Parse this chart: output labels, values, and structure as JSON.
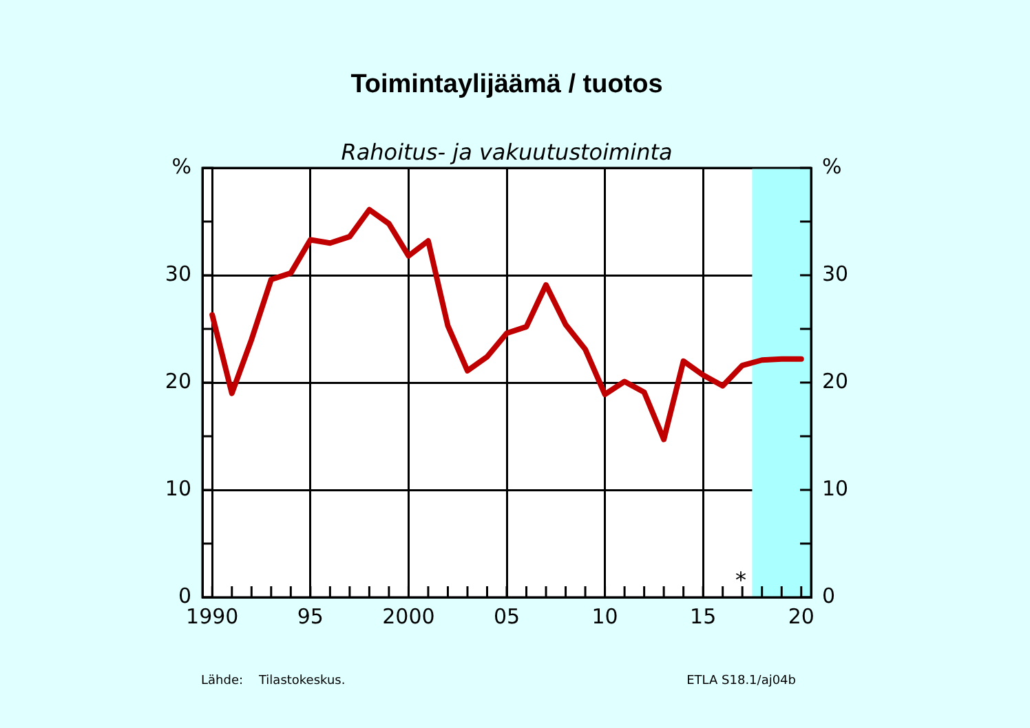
{
  "chart_data": {
    "type": "line",
    "title": "Toimintaylijäämä / tuotos",
    "subtitle": "Rahoitus- ja vakuutustoiminta",
    "x": [
      1990,
      1991,
      1992,
      1993,
      1994,
      1995,
      1996,
      1997,
      1998,
      1999,
      2000,
      2001,
      2002,
      2003,
      2004,
      2005,
      2006,
      2007,
      2008,
      2009,
      2010,
      2011,
      2012,
      2013,
      2014,
      2015,
      2016,
      2017,
      2018,
      2019,
      2020
    ],
    "series": [
      {
        "color": "#c00000",
        "values": [
          26.3,
          19.0,
          24.0,
          29.6,
          30.2,
          33.3,
          33.0,
          33.6,
          36.1,
          34.8,
          31.8,
          33.2,
          25.3,
          21.1,
          22.4,
          24.6,
          25.2,
          29.1,
          25.4,
          23.1,
          18.9,
          20.1,
          19.1,
          14.7,
          22.0,
          20.7,
          19.7,
          21.6,
          22.1,
          22.2,
          22.2
        ]
      }
    ],
    "xlim": [
      1989.5,
      2020.5
    ],
    "xticks": [
      1990,
      {
        "value": 1991,
        "label": null
      },
      {
        "value": 1992,
        "label": null
      },
      {
        "value": 1993,
        "label": null
      },
      {
        "value": 1994,
        "label": null
      },
      {
        "value": 1995,
        "label": "95"
      },
      {
        "value": 1996,
        "label": null
      },
      {
        "value": 1997,
        "label": null
      },
      {
        "value": 1998,
        "label": null
      },
      {
        "value": 1999,
        "label": null
      },
      2000,
      {
        "value": 2001,
        "label": null
      },
      {
        "value": 2002,
        "label": null
      },
      {
        "value": 2003,
        "label": null
      },
      {
        "value": 2004,
        "label": null
      },
      {
        "value": 2005,
        "label": "05"
      },
      {
        "value": 2006,
        "label": null
      },
      {
        "value": 2007,
        "label": null
      },
      {
        "value": 2008,
        "label": null
      },
      {
        "value": 2009,
        "label": null
      },
      {
        "value": 2010,
        "label": "10"
      },
      {
        "value": 2011,
        "label": null
      },
      {
        "value": 2012,
        "label": null
      },
      {
        "value": 2013,
        "label": null
      },
      {
        "value": 2014,
        "label": null
      },
      {
        "value": 2015,
        "label": "15"
      },
      {
        "value": 2016,
        "label": null
      },
      {
        "value": 2017,
        "label": null
      },
      {
        "value": 2018,
        "label": null
      },
      {
        "value": 2019,
        "label": null
      },
      {
        "value": 2020,
        "label": "20"
      }
    ],
    "ylim": [
      0,
      40
    ],
    "yticks": [
      0,
      {
        "value": 5,
        "label": null
      },
      10,
      {
        "value": 15,
        "label": null
      },
      20,
      {
        "value": 25,
        "label": null
      },
      30,
      {
        "value": 35,
        "label": null
      },
      {
        "value": 40,
        "label": "%"
      }
    ],
    "y2lim": [
      0,
      40
    ],
    "y2ticks": [
      0,
      {
        "value": 5,
        "label": null
      },
      10,
      {
        "value": 15,
        "label": null
      },
      20,
      {
        "value": 25,
        "label": null
      },
      30,
      {
        "value": 35,
        "label": null
      },
      {
        "value": 40,
        "label": "%"
      }
    ],
    "bands": [
      {
        "axis": "x",
        "from": 2017.5,
        "to": 2020.5,
        "color": "#aaffff"
      }
    ],
    "annotations": [
      "*",
      "Lähde:    Tilastokeskus.",
      "ETLA S18.1/aj04b"
    ],
    "grid": true,
    "marker": "none",
    "line_style": "solid",
    "legend": false
  }
}
